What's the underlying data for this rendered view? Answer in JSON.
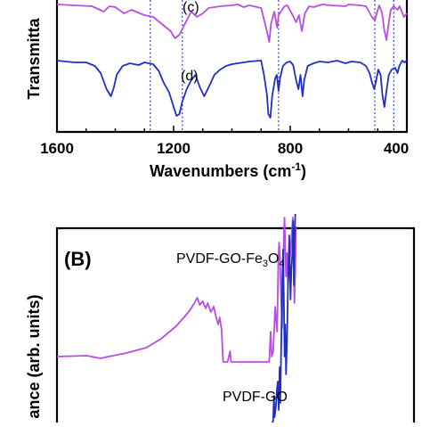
{
  "chart_data": [
    {
      "type": "line",
      "panel": "",
      "xlabel": "Wavenumbers (cm",
      "xlabel_sup": "-1",
      "xlabel_close": ")",
      "ylabel": "Transmitta",
      "x_reversed": true,
      "xlim": [
        1600,
        400
      ],
      "x_ticks": [
        1600,
        1200,
        800,
        400
      ],
      "grid": false,
      "series": [
        {
          "label": "(c)",
          "color": "#b84ee0",
          "points": [
            [
              1600,
              0
            ],
            [
              1480,
              2
            ],
            [
              1440,
              8
            ],
            [
              1420,
              2
            ],
            [
              1400,
              3
            ],
            [
              1370,
              10
            ],
            [
              1345,
              6
            ],
            [
              1300,
              12
            ],
            [
              1270,
              14
            ],
            [
              1240,
              22
            ],
            [
              1210,
              30
            ],
            [
              1195,
              38
            ],
            [
              1180,
              34
            ],
            [
              1165,
              24
            ],
            [
              1140,
              8
            ],
            [
              1120,
              14
            ],
            [
              1100,
              10
            ],
            [
              1080,
              4
            ],
            [
              1040,
              2
            ],
            [
              1000,
              1
            ],
            [
              980,
              0
            ],
            [
              960,
              3
            ],
            [
              940,
              1
            ],
            [
              900,
              4
            ],
            [
              880,
              30
            ],
            [
              872,
              42
            ],
            [
              866,
              22
            ],
            [
              855,
              8
            ],
            [
              845,
              26
            ],
            [
              840,
              12
            ],
            [
              820,
              2
            ],
            [
              810,
              1
            ],
            [
              795,
              10
            ],
            [
              780,
              20
            ],
            [
              770,
              12
            ],
            [
              760,
              30
            ],
            [
              750,
              10
            ],
            [
              735,
              2
            ],
            [
              720,
              3
            ],
            [
              690,
              0
            ],
            [
              660,
              1
            ],
            [
              610,
              2
            ],
            [
              600,
              0
            ],
            [
              560,
              1
            ],
            [
              540,
              2
            ],
            [
              530,
              8
            ],
            [
              520,
              14
            ],
            [
              510,
              18
            ],
            [
              500,
              6
            ],
            [
              495,
              1
            ],
            [
              485,
              10
            ],
            [
              478,
              28
            ],
            [
              470,
              40
            ],
            [
              462,
              20
            ],
            [
              455,
              6
            ],
            [
              445,
              2
            ],
            [
              432,
              6
            ],
            [
              425,
              2
            ],
            [
              410,
              14
            ],
            [
              400,
              10
            ]
          ]
        },
        {
          "label": "(d)",
          "color": "#1f2fc2",
          "points": [
            [
              1600,
              0
            ],
            [
              1540,
              2
            ],
            [
              1500,
              2
            ],
            [
              1470,
              6
            ],
            [
              1450,
              14
            ],
            [
              1430,
              32
            ],
            [
              1415,
              40
            ],
            [
              1405,
              30
            ],
            [
              1395,
              16
            ],
            [
              1375,
              6
            ],
            [
              1350,
              3
            ],
            [
              1320,
              5
            ],
            [
              1300,
              2
            ],
            [
              1270,
              4
            ],
            [
              1250,
              12
            ],
            [
              1235,
              24
            ],
            [
              1215,
              36
            ],
            [
              1200,
              52
            ],
            [
              1190,
              62
            ],
            [
              1180,
              60
            ],
            [
              1170,
              46
            ],
            [
              1155,
              32
            ],
            [
              1140,
              22
            ],
            [
              1125,
              16
            ],
            [
              1110,
              30
            ],
            [
              1095,
              40
            ],
            [
              1080,
              30
            ],
            [
              1060,
              16
            ],
            [
              1040,
              10
            ],
            [
              1020,
              6
            ],
            [
              1000,
              4
            ],
            [
              960,
              2
            ],
            [
              940,
              1
            ],
            [
              900,
              0
            ],
            [
              890,
              16
            ],
            [
              880,
              38
            ],
            [
              875,
              60
            ],
            [
              868,
              64
            ],
            [
              862,
              40
            ],
            [
              852,
              20
            ],
            [
              846,
              16
            ],
            [
              840,
              34
            ],
            [
              835,
              20
            ],
            [
              825,
              6
            ],
            [
              812,
              2
            ],
            [
              800,
              1
            ],
            [
              790,
              5
            ],
            [
              780,
              22
            ],
            [
              772,
              32
            ],
            [
              765,
              16
            ],
            [
              758,
              40
            ],
            [
              752,
              22
            ],
            [
              740,
              6
            ],
            [
              720,
              3
            ],
            [
              700,
              1
            ],
            [
              670,
              2
            ],
            [
              640,
              0
            ],
            [
              610,
              3
            ],
            [
              590,
              1
            ],
            [
              560,
              2
            ],
            [
              540,
              6
            ],
            [
              528,
              14
            ],
            [
              520,
              24
            ],
            [
              512,
              32
            ],
            [
              505,
              22
            ],
            [
              498,
              10
            ],
            [
              490,
              16
            ],
            [
              484,
              38
            ],
            [
              477,
              52
            ],
            [
              470,
              34
            ],
            [
              462,
              16
            ],
            [
              452,
              10
            ],
            [
              440,
              8
            ],
            [
              432,
              14
            ],
            [
              426,
              6
            ],
            [
              416,
              0
            ],
            [
              408,
              2
            ],
            [
              400,
              0
            ]
          ]
        }
      ],
      "reference_lines": [
        1280,
        1170,
        840,
        510,
        445
      ]
    },
    {
      "type": "line",
      "panel": "(B)",
      "ylabel": "ance (arb. units)",
      "x_reversed": true,
      "xlim": [
        4000,
        400
      ],
      "grid": false,
      "series": [
        {
          "name_main": "PVDF-GO-Fe",
          "name_sub1": "3",
          "name_mid": "O",
          "name_sub2": "4",
          "color": "#b84ee0",
          "points": [
            [
              4000,
              0
            ],
            [
              3700,
              0.5
            ],
            [
              3560,
              -1
            ],
            [
              3480,
              0
            ],
            [
              3300,
              2
            ],
            [
              3100,
              5
            ],
            [
              2950,
              10
            ],
            [
              2800,
              17
            ],
            [
              2720,
              22
            ],
            [
              2660,
              26
            ],
            [
              2615,
              30
            ],
            [
              2585,
              33
            ],
            [
              2560,
              29
            ],
            [
              2530,
              31
            ],
            [
              2500,
              27
            ],
            [
              2480,
              30
            ],
            [
              2450,
              25
            ],
            [
              2420,
              28
            ],
            [
              2395,
              22
            ],
            [
              2375,
              18
            ],
            [
              2360,
              22
            ],
            [
              2340,
              15
            ],
            [
              2325,
              -3
            ],
            [
              2310,
              -3
            ],
            [
              2280,
              -3
            ],
            [
              2255,
              3
            ],
            [
              2245,
              -3
            ],
            [
              2200,
              -3
            ],
            [
              1900,
              -3
            ],
            [
              1860,
              -3
            ],
            [
              1845,
              14
            ],
            [
              1835,
              0
            ],
            [
              1820,
              3
            ],
            [
              1800,
              28
            ],
            [
              1790,
              20
            ],
            [
              1780,
              14
            ],
            [
              1768,
              54
            ],
            [
              1760,
              64
            ],
            [
              1752,
              56
            ],
            [
              1742,
              36
            ],
            [
              1730,
              16
            ],
            [
              1720,
              40
            ],
            [
              1712,
              70
            ],
            [
              1705,
              78
            ],
            [
              1698,
              60
            ],
            [
              1690,
              45
            ],
            [
              1680,
              58
            ],
            [
              1670,
              40
            ],
            [
              1660,
              50
            ],
            [
              1645,
              60
            ],
            [
              1632,
              70
            ],
            [
              1622,
              78
            ],
            [
              1614,
              50
            ],
            [
              1606,
              30
            ],
            [
              1598,
              48
            ],
            [
              1592,
              73
            ]
          ]
        },
        {
          "name": "PVDF-GO",
          "color": "#1f2fc2",
          "points": [
            [
              1850,
              -40
            ],
            [
              1820,
              -36
            ],
            [
              1812,
              -22
            ],
            [
              1806,
              -34
            ],
            [
              1792,
              -28
            ],
            [
              1782,
              -18
            ],
            [
              1774,
              -14
            ],
            [
              1764,
              -30
            ],
            [
              1755,
              -6
            ],
            [
              1748,
              -26
            ],
            [
              1736,
              16
            ],
            [
              1728,
              44
            ],
            [
              1720,
              60
            ],
            [
              1712,
              30
            ],
            [
              1704,
              0
            ],
            [
              1698,
              18
            ],
            [
              1690,
              -10
            ],
            [
              1680,
              10
            ],
            [
              1670,
              40
            ],
            [
              1658,
              68
            ],
            [
              1645,
              32
            ],
            [
              1635,
              50
            ],
            [
              1626,
              58
            ],
            [
              1618,
              76
            ],
            [
              1610,
              40
            ],
            [
              1604,
              64
            ],
            [
              1598,
              80
            ]
          ]
        }
      ]
    }
  ]
}
